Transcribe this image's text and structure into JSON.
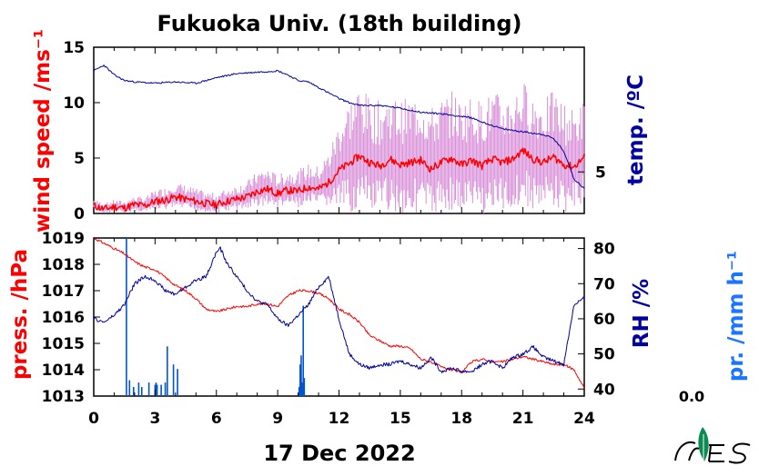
{
  "title": "Fukuoka Univ. (18th building)",
  "date_label": "17 Dec 2022",
  "precip_value_text": "0.0",
  "colors": {
    "wind": "#ff0000",
    "wind_raw": "#d98fd9",
    "temp": "#0000a0",
    "press": "#ff0000",
    "rh": "#0000a0",
    "precip": "#0055cc",
    "precip_label": "#1a75ff",
    "logo": "#0b8a52"
  },
  "chart_data": [
    {
      "type": "line",
      "panel": "top",
      "xlabel": "",
      "ylabel_left": "wind speed /ms⁻¹",
      "ylabel_right": "temp. /ºC",
      "xlim": [
        0,
        24
      ],
      "ylim_left": [
        0,
        15
      ],
      "yticks_left": [
        0,
        5,
        10,
        15
      ],
      "yticks_right": [
        5
      ],
      "ylim_right": [
        2,
        14
      ],
      "grid": false,
      "series": [
        {
          "key": "wind_mean",
          "axis": "left",
          "x": [
            0,
            0.5,
            1,
            1.5,
            2,
            2.5,
            3,
            3.5,
            4,
            4.5,
            5,
            5.5,
            6,
            6.5,
            7,
            7.5,
            8,
            8.5,
            9,
            9.5,
            10,
            10.5,
            11,
            11.5,
            12,
            12.5,
            13,
            13.5,
            14,
            14.5,
            15,
            15.5,
            16,
            16.5,
            17,
            17.5,
            18,
            18.5,
            19,
            19.5,
            20,
            20.5,
            21,
            21.5,
            22,
            22.5,
            23,
            23.5,
            24
          ],
          "values": [
            0.7,
            0.4,
            0.6,
            0.5,
            0.8,
            0.7,
            1.1,
            1.2,
            1.5,
            1.3,
            1.1,
            0.9,
            0.8,
            1.1,
            1.3,
            1.5,
            2.0,
            2.2,
            1.8,
            2.1,
            2.0,
            2.4,
            2.2,
            2.8,
            3.9,
            4.5,
            5.2,
            4.6,
            4.3,
            4.9,
            4.4,
            4.6,
            4.8,
            4.0,
            4.6,
            5.0,
            4.4,
            4.8,
            4.3,
            4.9,
            4.6,
            4.9,
            5.7,
            4.9,
            4.6,
            5.1,
            4.4,
            4.2,
            5.1
          ]
        },
        {
          "key": "wind_raw",
          "axis": "left",
          "x": [
            0,
            0.5,
            1,
            1.5,
            2,
            2.5,
            3,
            3.5,
            4,
            4.5,
            5,
            5.5,
            6,
            6.5,
            7,
            7.5,
            8,
            8.5,
            9,
            9.5,
            10,
            10.5,
            11,
            11.5,
            12,
            12.5,
            13,
            13.5,
            14,
            14.5,
            15,
            15.5,
            16,
            16.5,
            17,
            17.5,
            18,
            18.5,
            19,
            19.5,
            20,
            20.5,
            21,
            21.5,
            22,
            22.5,
            23,
            23.5,
            24
          ],
          "values": [
            0.7,
            0.4,
            0.6,
            0.5,
            0.8,
            0.7,
            1.1,
            1.2,
            1.5,
            1.3,
            1.1,
            0.9,
            0.8,
            1.1,
            1.3,
            1.5,
            2.0,
            2.2,
            1.8,
            2.1,
            2.0,
            2.4,
            2.2,
            2.8,
            3.9,
            4.5,
            5.2,
            4.6,
            4.3,
            4.9,
            4.4,
            4.6,
            4.8,
            4.0,
            4.6,
            5.0,
            4.4,
            4.8,
            4.3,
            4.9,
            4.6,
            4.9,
            5.7,
            4.9,
            4.6,
            5.1,
            4.4,
            4.2,
            5.1
          ],
          "spread": [
            0.5,
            0.4,
            0.5,
            0.5,
            0.6,
            0.6,
            0.8,
            0.9,
            1.0,
            1.0,
            0.9,
            0.8,
            0.8,
            0.9,
            1.0,
            1.1,
            1.4,
            1.5,
            1.3,
            1.4,
            1.5,
            1.6,
            1.6,
            2.2,
            3.5,
            4.5,
            5.0,
            4.5,
            4.5,
            4.6,
            4.5,
            4.6,
            4.7,
            4.3,
            4.5,
            4.7,
            4.5,
            4.6,
            4.5,
            4.8,
            4.6,
            4.7,
            4.9,
            4.6,
            4.5,
            4.6,
            4.4,
            4.0,
            4.0
          ]
        },
        {
          "key": "temp",
          "axis": "right",
          "x": [
            0,
            0.5,
            1,
            1.5,
            2,
            3,
            4,
            5,
            6,
            7,
            8,
            9,
            9.5,
            10,
            10.5,
            11,
            11.5,
            12,
            12.5,
            13,
            13.5,
            14,
            15,
            16,
            17,
            18,
            18.5,
            19,
            20,
            21,
            22,
            22.5,
            23,
            23.5,
            24
          ],
          "values": [
            12.3,
            12.7,
            12.0,
            11.6,
            11.5,
            11.4,
            11.5,
            11.4,
            11.8,
            12.1,
            12.2,
            12.3,
            12.0,
            11.6,
            11.5,
            11.1,
            10.7,
            10.3,
            10.0,
            9.8,
            9.8,
            9.8,
            9.6,
            9.3,
            9.2,
            9.0,
            8.9,
            8.6,
            8.1,
            7.9,
            7.7,
            7.4,
            6.5,
            4.5,
            3.8
          ]
        }
      ]
    },
    {
      "type": "line",
      "panel": "bottom",
      "xlabel": "",
      "ylabel_left": "press. /hPa",
      "ylabel_right": "RH /%",
      "ylabel_precip": "pr. /mm h⁻¹",
      "xlim": [
        0,
        24
      ],
      "xticks": [
        0,
        3,
        6,
        9,
        12,
        15,
        18,
        21,
        24
      ],
      "ylim_left": [
        1013,
        1019
      ],
      "yticks_left": [
        1013,
        1014,
        1015,
        1016,
        1017,
        1018,
        1019
      ],
      "ylim_right": [
        38,
        83
      ],
      "yticks_right": [
        40,
        50,
        60,
        70,
        80
      ],
      "grid": false,
      "series": [
        {
          "key": "press",
          "axis": "left",
          "x": [
            0,
            0.5,
            1,
            1.5,
            2,
            2.5,
            3,
            3.5,
            4,
            4.5,
            5,
            5.5,
            6,
            6.5,
            7,
            7.5,
            8,
            8.5,
            9,
            9.5,
            10,
            10.5,
            11,
            11.5,
            12,
            12.5,
            13,
            13.5,
            14,
            14.5,
            15,
            15.5,
            16,
            16.5,
            17,
            17.5,
            18,
            18.5,
            19,
            19.5,
            20,
            20.5,
            21,
            21.5,
            22,
            22.5,
            23,
            23.5,
            24
          ],
          "values": [
            1019.0,
            1018.8,
            1018.6,
            1018.4,
            1018.1,
            1017.9,
            1017.8,
            1017.5,
            1017.2,
            1017.0,
            1016.7,
            1016.3,
            1016.2,
            1016.3,
            1016.4,
            1016.4,
            1016.5,
            1016.5,
            1016.4,
            1016.8,
            1017.0,
            1017.0,
            1016.9,
            1016.7,
            1016.3,
            1016.1,
            1015.8,
            1015.3,
            1015.1,
            1014.9,
            1014.9,
            1014.8,
            1014.4,
            1014.3,
            1014.1,
            1014.0,
            1013.9,
            1014.3,
            1014.4,
            1014.3,
            1014.3,
            1014.4,
            1014.5,
            1014.4,
            1014.3,
            1014.2,
            1014.2,
            1014.0,
            1013.3
          ]
        },
        {
          "key": "rh",
          "axis": "right",
          "x": [
            0,
            0.5,
            1,
            1.5,
            2,
            2.5,
            3,
            3.5,
            4,
            4.5,
            5,
            5.5,
            6,
            6.2,
            6.5,
            7,
            7.5,
            8,
            8.5,
            9,
            9.5,
            10,
            10.5,
            11,
            11.5,
            12,
            12.5,
            13,
            13.5,
            14,
            14.5,
            15,
            15.5,
            16,
            16.5,
            17,
            17.5,
            18,
            18.5,
            19,
            19.5,
            20,
            20.5,
            21,
            21.5,
            22,
            22.5,
            23,
            23.5,
            24
          ],
          "values": [
            60,
            59,
            61,
            64,
            70,
            72,
            71,
            68,
            67,
            69,
            71,
            72,
            79,
            80,
            76,
            72,
            68,
            65,
            64,
            60,
            58,
            61,
            64,
            69,
            72,
            60,
            50,
            47,
            46,
            47,
            47,
            48,
            47,
            46,
            49,
            45,
            46,
            45,
            45,
            47,
            48,
            46,
            49,
            50,
            52,
            49,
            48,
            47,
            64,
            66
          ]
        },
        {
          "key": "precip",
          "axis": "precip",
          "ylim": [
            0,
            3.5
          ],
          "x": [
            1.6,
            1.75,
            1.95,
            2.2,
            2.35,
            2.7,
            3.0,
            3.05,
            3.1,
            3.3,
            3.5,
            3.6,
            3.9,
            4.1,
            10.05,
            10.1,
            10.15,
            10.2,
            10.25,
            10.3
          ],
          "values": [
            3.5,
            0.35,
            0.2,
            0.3,
            0.2,
            0.3,
            0.25,
            0.3,
            0.25,
            0.25,
            0.3,
            1.1,
            0.7,
            0.6,
            0.2,
            0.7,
            0.9,
            0.3,
            2.0,
            0.4
          ]
        }
      ]
    }
  ]
}
